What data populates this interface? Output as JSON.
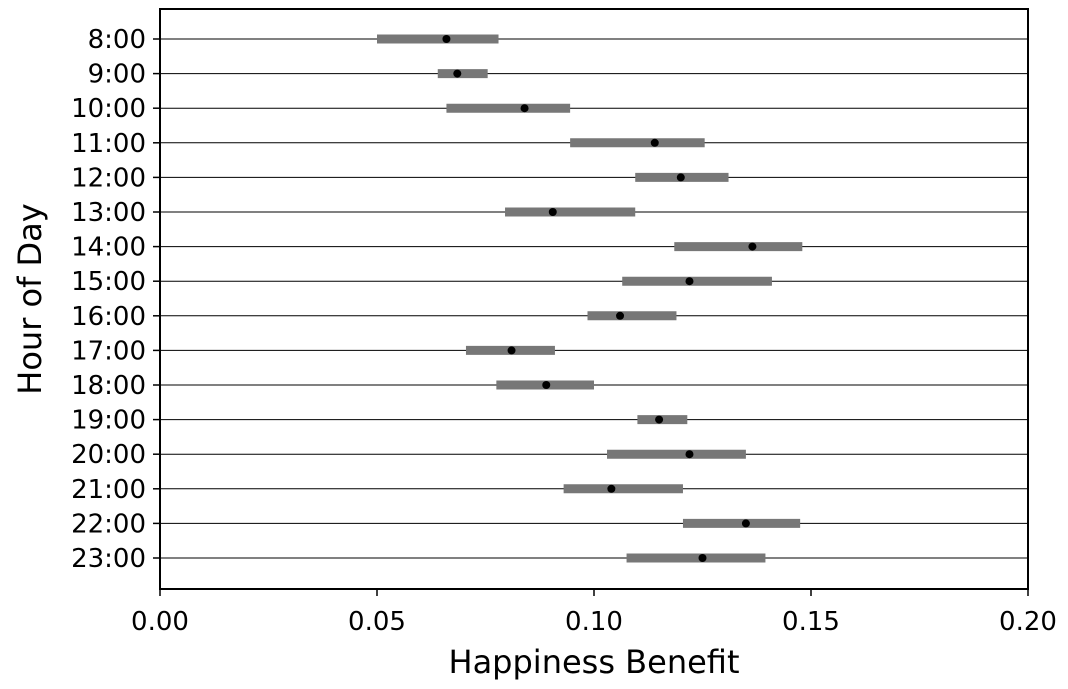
{
  "chart_data": {
    "type": "scatter",
    "title": "",
    "xlabel": "Happiness Benefit",
    "ylabel": "Hour of Day",
    "xlim": [
      0.0,
      0.2
    ],
    "x_ticks": [
      0.0,
      0.05,
      0.1,
      0.15,
      0.2
    ],
    "x_tick_labels": [
      "0.00",
      "0.05",
      "0.10",
      "0.15",
      "0.20"
    ],
    "grid": "horizontal",
    "legend": "none",
    "colors": {
      "point": "#000000",
      "interval": "#777777",
      "gridline": "#000000",
      "axis": "#000000"
    },
    "categories": [
      "8:00",
      "9:00",
      "10:00",
      "11:00",
      "12:00",
      "13:00",
      "14:00",
      "15:00",
      "16:00",
      "17:00",
      "18:00",
      "19:00",
      "20:00",
      "21:00",
      "22:00",
      "23:00"
    ],
    "values": [
      0.066,
      0.0685,
      0.084,
      0.114,
      0.12,
      0.0905,
      0.1365,
      0.122,
      0.106,
      0.081,
      0.089,
      0.115,
      0.122,
      0.104,
      0.135,
      0.125
    ],
    "lower": [
      0.05,
      0.064,
      0.066,
      0.0945,
      0.1095,
      0.0795,
      0.1185,
      0.1065,
      0.0985,
      0.0705,
      0.0775,
      0.11,
      0.103,
      0.093,
      0.1205,
      0.1075
    ],
    "upper": [
      0.078,
      0.0755,
      0.0945,
      0.1255,
      0.131,
      0.1095,
      0.148,
      0.141,
      0.119,
      0.091,
      0.1,
      0.1215,
      0.135,
      0.1205,
      0.1475,
      0.1395
    ]
  }
}
